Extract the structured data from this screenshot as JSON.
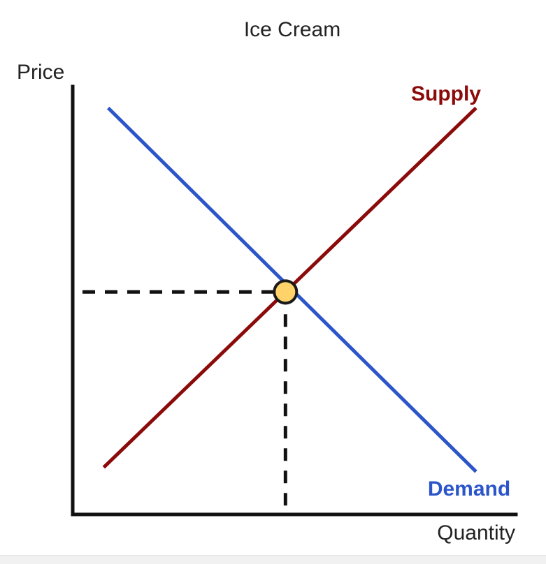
{
  "chart_data": {
    "type": "line",
    "title": "Ice Cream",
    "xlabel": "Quantity",
    "ylabel": "Price",
    "grid": false,
    "legend": "none",
    "xlim": [
      0,
      10
    ],
    "ylim": [
      0,
      10
    ],
    "series": [
      {
        "name": "Supply",
        "color": "#8b0a0a",
        "points": [
          [
            0.7,
            1.1
          ],
          [
            9.1,
            9.5
          ]
        ]
      },
      {
        "name": "Demand",
        "color": "#2b55c9",
        "points": [
          [
            0.8,
            9.5
          ],
          [
            9.1,
            1.0
          ]
        ]
      }
    ],
    "equilibrium": {
      "x": 4.8,
      "y": 5.2,
      "marker_fill": "#ffd36a",
      "marker_stroke": "#1a1a1a"
    },
    "guide_color": "#111111",
    "axis_color": "#111111"
  }
}
